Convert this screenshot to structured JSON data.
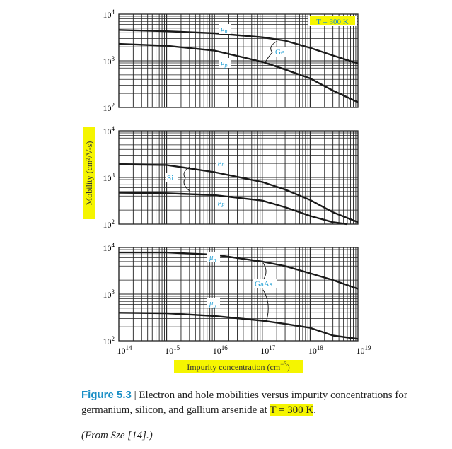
{
  "chart_data": [
    {
      "type": "line",
      "panel": "Ge",
      "xscale": "log",
      "yscale": "log",
      "xlim": [
        100000000000000.0,
        1e+19
      ],
      "ylim": [
        100,
        10000
      ],
      "x_ticks": [
        "10^14",
        "10^15",
        "10^16",
        "10^17",
        "10^18",
        "10^19"
      ],
      "y_ticks": [
        "10^2",
        "10^3",
        "10^4"
      ],
      "annotation": "T = 300 K",
      "material_label": "Ge",
      "series": [
        {
          "name": "μn",
          "x": [
            100000000000000.0,
            1000000000000000.0,
            1e+16,
            1e+17,
            3e+17,
            1e+18,
            3e+18,
            1e+19
          ],
          "y": [
            4600,
            4300,
            3900,
            3200,
            2700,
            1900,
            1300,
            880
          ]
        },
        {
          "name": "μp",
          "x": [
            100000000000000.0,
            1000000000000000.0,
            1e+16,
            1e+17,
            3e+17,
            1e+18,
            3e+18,
            1e+19
          ],
          "y": [
            2300,
            2100,
            1650,
            950,
            650,
            420,
            230,
            130
          ]
        }
      ]
    },
    {
      "type": "line",
      "panel": "Si",
      "xscale": "log",
      "yscale": "log",
      "xlim": [
        100000000000000.0,
        1e+19
      ],
      "ylim": [
        100,
        10000
      ],
      "x_ticks": [
        "10^14",
        "10^15",
        "10^16",
        "10^17",
        "10^18",
        "10^19"
      ],
      "y_ticks": [
        "10^2",
        "10^3",
        "10^4"
      ],
      "material_label": "Si",
      "series": [
        {
          "name": "μn",
          "x": [
            100000000000000.0,
            1000000000000000.0,
            1e+16,
            1e+17,
            3e+17,
            1e+18,
            3e+18,
            1e+19
          ],
          "y": [
            1900,
            1850,
            1300,
            800,
            550,
            330,
            180,
            110
          ]
        },
        {
          "name": "μp",
          "x": [
            100000000000000.0,
            1000000000000000.0,
            1e+16,
            1e+17,
            3e+17,
            1e+18,
            3e+18,
            6e+18
          ],
          "y": [
            470,
            460,
            420,
            320,
            230,
            150,
            110,
            100
          ]
        }
      ]
    },
    {
      "type": "line",
      "panel": "GaAs",
      "xscale": "log",
      "yscale": "log",
      "xlim": [
        100000000000000.0,
        1e+19
      ],
      "ylim": [
        100,
        10000
      ],
      "x_ticks": [
        "10^14",
        "10^15",
        "10^16",
        "10^17",
        "10^18",
        "10^19"
      ],
      "y_ticks": [
        "10^2",
        "10^3",
        "10^4"
      ],
      "material_label": "GaAs",
      "series": [
        {
          "name": "μn",
          "x": [
            100000000000000.0,
            1000000000000000.0,
            1e+16,
            1e+17,
            3e+17,
            1e+18,
            3e+18,
            1e+19
          ],
          "y": [
            7800,
            7800,
            7000,
            5000,
            4000,
            2800,
            2000,
            1300
          ]
        },
        {
          "name": "μp",
          "x": [
            100000000000000.0,
            1000000000000000.0,
            1e+16,
            1e+17,
            3e+17,
            1e+18,
            3e+18,
            1e+19
          ],
          "y": [
            400,
            390,
            340,
            270,
            230,
            190,
            130,
            110
          ]
        }
      ]
    }
  ],
  "axes": {
    "ylabel": "Mobility (cm²/V-s)",
    "xlabel_prefix": "Impurity concentration (cm",
    "xlabel_exp": "−3",
    "xlabel_suffix": ")"
  },
  "colors": {
    "curve": "#1a1a1a",
    "grid": "#222222",
    "label": "#29a3d6",
    "highlight": "#f5f500",
    "caption_accent": "#1a8fc6"
  },
  "caption": {
    "figure_number": "Figure 5.3",
    "separator": " | ",
    "text_1": "Electron and hole mobilities versus impurity concentrations for germanium, silicon, and gallium arsenide at ",
    "text_highlight": "T = 300 K",
    "text_2": ".",
    "credit": "(From Sze [14].)"
  }
}
